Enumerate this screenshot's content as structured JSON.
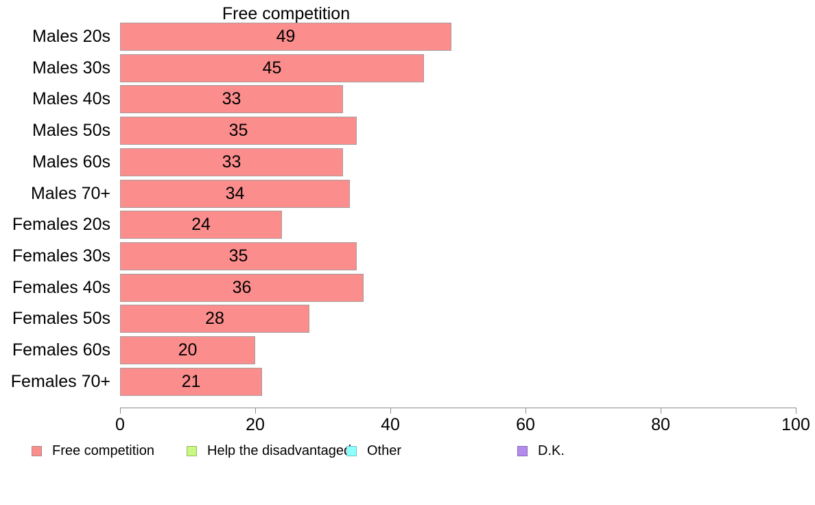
{
  "chart_data": {
    "type": "bar",
    "orientation": "horizontal",
    "title": "Free competition",
    "categories": [
      "Males 20s",
      "Males 30s",
      "Males 40s",
      "Males 50s",
      "Males 60s",
      "Males 70+",
      "Females 20s",
      "Females 30s",
      "Females 40s",
      "Females 50s",
      "Females 60s",
      "Females 70+"
    ],
    "values": [
      49,
      45,
      33,
      35,
      33,
      34,
      24,
      35,
      36,
      28,
      20,
      21
    ],
    "xlim": [
      0,
      100
    ],
    "x_ticks": [
      "0",
      "20",
      "40",
      "60",
      "80",
      "100"
    ],
    "grid": false,
    "background": "#ffffff",
    "bar_fill": "#FC8D8D",
    "bar_border": "#A59C9C",
    "axis_color": "#8C8C8C",
    "text_color": "#000000",
    "legend_position": "bottom",
    "legend": [
      {
        "label": "Free competition",
        "fill": "#FC8D8D",
        "border": "#B08484"
      },
      {
        "label": "Help the disadvantaged",
        "fill": "#C9F77F",
        "border": "#93B871"
      },
      {
        "label": "Other",
        "fill": "#8CFFFF",
        "border": "#76BDBD"
      },
      {
        "label": "D.K.",
        "fill": "#B48BEC",
        "border": "#8A68B5"
      }
    ]
  }
}
